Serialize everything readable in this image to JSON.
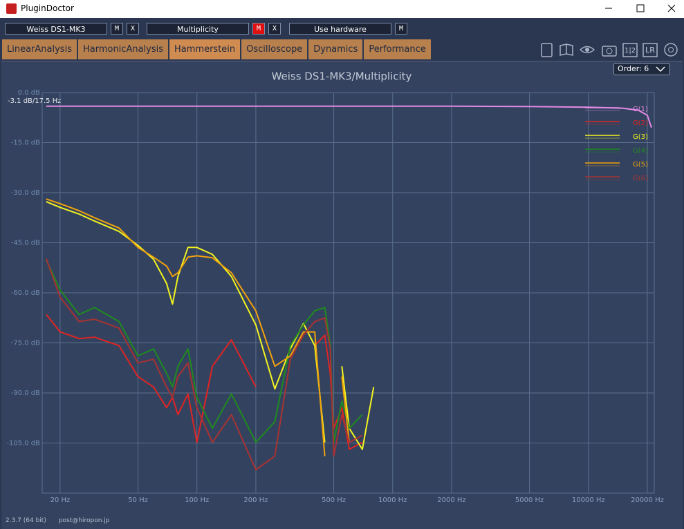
{
  "window": {
    "title": "PluginDoctor"
  },
  "toolbar": {
    "slots": [
      {
        "name": "Weiss DS1-MK3",
        "buttons": [
          {
            "label": "M",
            "active": false
          },
          {
            "label": "X",
            "active": false
          }
        ]
      },
      {
        "name": "Multiplicity",
        "buttons": [
          {
            "label": "M",
            "active": true
          },
          {
            "label": "X",
            "active": false
          }
        ]
      },
      {
        "name": "Use hardware",
        "buttons": [
          {
            "label": "M",
            "active": false
          }
        ]
      }
    ],
    "icon_texts": [
      "1|2",
      "LR"
    ]
  },
  "tabs": {
    "items": [
      "LinearAnalysis",
      "HarmonicAnalysis",
      "Hammerstein",
      "Oscilloscope",
      "Dynamics",
      "Performance"
    ],
    "active_index": 2
  },
  "order_select": "Order: 6",
  "chart_data": {
    "type": "line",
    "title": "Weiss DS1-MK3/Multiplicity",
    "annotation": "-3.1 dB/17.5 Hz",
    "log_x": true,
    "grid": true,
    "legend": "upper right",
    "xlim": [
      16.2,
      21700
    ],
    "ylim": [
      -120,
      0
    ],
    "xticks": [
      {
        "value": 20,
        "label": "20 Hz"
      },
      {
        "value": 50,
        "label": "50 Hz"
      },
      {
        "value": 100,
        "label": "100 Hz"
      },
      {
        "value": 200,
        "label": "200 Hz"
      },
      {
        "value": 500,
        "label": "500 Hz"
      },
      {
        "value": 1000,
        "label": "1000 Hz"
      },
      {
        "value": 2000,
        "label": "2000 Hz"
      },
      {
        "value": 5000,
        "label": "5000 Hz"
      },
      {
        "value": 10000,
        "label": "10000 Hz"
      },
      {
        "value": 20000,
        "label": "20000 Hz"
      }
    ],
    "yticks": [
      {
        "value": 0,
        "label": "0.0 dB"
      },
      {
        "value": -15,
        "label": "-15.0 dB"
      },
      {
        "value": -30,
        "label": "-30.0 dB"
      },
      {
        "value": -45,
        "label": "-45.0 dB"
      },
      {
        "value": -60,
        "label": "-60.0 dB"
      },
      {
        "value": -75,
        "label": "-75.0 dB"
      },
      {
        "value": -90,
        "label": "-90.0 dB"
      },
      {
        "value": -105,
        "label": "-105.0 dB"
      }
    ],
    "x": [
      17,
      20,
      25,
      30,
      40,
      50,
      60,
      70,
      75,
      80,
      90,
      100,
      120,
      150,
      200,
      250,
      300,
      350,
      400,
      450,
      480,
      500,
      550,
      600,
      700,
      800,
      900,
      1000,
      2000,
      5000,
      10000,
      15000,
      18000,
      20000,
      21000
    ],
    "series": [
      {
        "name": "G(1)",
        "color": "#e58ae6",
        "values": [
          -4.1,
          -4.1,
          -4.1,
          -4.1,
          -4.1,
          -4.1,
          -4.1,
          -4.1,
          -4.1,
          -4.1,
          -4.1,
          -4.1,
          -4.1,
          -4.1,
          -4.1,
          -4.1,
          -4.1,
          -4.1,
          -4.1,
          -4.1,
          -4.1,
          -4.1,
          -4.1,
          -4.1,
          -4.1,
          -4.1,
          -4.1,
          -4.1,
          -4.1,
          -4.2,
          -4.4,
          -4.7,
          -5.3,
          -6.8,
          -10.5
        ]
      },
      {
        "name": "G(2)",
        "color": "#e02424",
        "values": [
          -66.5,
          -71.7,
          -73.7,
          -73.3,
          -75.8,
          -85.1,
          -88.2,
          -94.4,
          -91.3,
          -96.5,
          -90.3,
          -104.8,
          -82,
          -74.1,
          -88.2,
          null,
          null,
          null,
          -75.8,
          -72.7,
          -84.1,
          -100.6,
          -94.4,
          -106.9,
          -104.8,
          null,
          -92.4,
          null,
          null,
          null,
          null,
          null,
          null,
          null,
          null
        ]
      },
      {
        "name": "G(3)",
        "color": "#f4f41e",
        "values": [
          -32.7,
          -34.4,
          -36.4,
          -38.5,
          -41.6,
          -45.8,
          -49.9,
          -57.2,
          -63.4,
          -55.1,
          -46.4,
          -46.4,
          -48.5,
          -55.1,
          -69.6,
          -88.8,
          -76.8,
          -69.2,
          -75.8,
          -104.8,
          null,
          null,
          -82,
          -100.6,
          -106.9,
          -88.2,
          null,
          null,
          null,
          null,
          null,
          null,
          null,
          null,
          null
        ]
      },
      {
        "name": "G(4)",
        "color": "#1f8a1f",
        "values": [
          -50.1,
          -59.2,
          -66.5,
          -64.4,
          -68.6,
          -78.9,
          -76.8,
          -84.1,
          -88.2,
          -82,
          -76.8,
          -91.3,
          -100.6,
          -90.3,
          -104.8,
          -98.6,
          -75.8,
          -69.6,
          -65.4,
          -64.4,
          -75.8,
          -104.8,
          -92.4,
          -100.6,
          -96.5,
          null,
          -83,
          null,
          null,
          null,
          null,
          null,
          null,
          null,
          null
        ]
      },
      {
        "name": "G(5)",
        "color": "#f2a20c",
        "values": [
          -31.9,
          -33.3,
          -35.4,
          -37.5,
          -40.6,
          -46.4,
          -49.3,
          -52,
          -55.1,
          -54,
          -49.3,
          -48.9,
          -49.5,
          -54,
          -65.4,
          -82,
          -78.9,
          -71.7,
          -71.7,
          -108.9,
          null,
          null,
          -85.1,
          -104.8,
          null,
          -94.4,
          null,
          null,
          null,
          null,
          null,
          null,
          null,
          null,
          null
        ]
      },
      {
        "name": "G(6)",
        "color": "#a83232",
        "values": [
          -49.8,
          -61.3,
          -68.6,
          -67.9,
          -70.6,
          -81,
          -79.9,
          -88.2,
          -91.3,
          -85.1,
          -81,
          -94.4,
          -104.8,
          -96.5,
          -113,
          -108.9,
          -79.9,
          -72.7,
          -68.6,
          -67.5,
          -76.8,
          -108.9,
          -96.5,
          -104.8,
          -102.7,
          null,
          -88.2,
          null,
          null,
          null,
          null,
          null,
          null,
          null,
          null
        ]
      }
    ]
  },
  "footer": {
    "version": "2.3.7 (64 bit)",
    "email": "post@hiropon.jp"
  }
}
